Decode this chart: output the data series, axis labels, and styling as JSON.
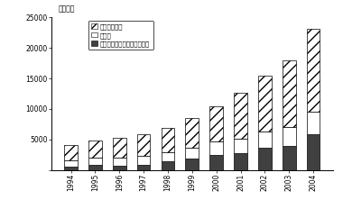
{
  "years": [
    "1994",
    "1995",
    "1996",
    "1997",
    "1998",
    "1999",
    "2000",
    "2001",
    "2002",
    "2003",
    "2004"
  ],
  "local_own": [
    2500,
    2800,
    3200,
    3500,
    4000,
    4800,
    5700,
    7500,
    9200,
    11000,
    13500
  ],
  "tax_rebate": [
    1000,
    1300,
    1400,
    1500,
    1500,
    1800,
    2200,
    2400,
    2700,
    3000,
    3800
  ],
  "central_transfer": [
    600,
    800,
    700,
    800,
    1400,
    1900,
    2500,
    2800,
    3600,
    4000,
    5800
  ],
  "ylabel": "（億元）",
  "ylim": [
    0,
    25000
  ],
  "yticks": [
    0,
    5000,
    10000,
    15000,
    20000,
    25000
  ],
  "legend_labels": [
    "地方本級収入",
    "税還付",
    "税還付以外の中央からの移転"
  ],
  "hatch_local": "///",
  "color_local": "#ffffff",
  "color_rebate": "#ffffff",
  "color_transfer": "#404040",
  "bar_edge_color": "#000000",
  "fig_width": 3.8,
  "fig_height": 2.42,
  "dpi": 100
}
